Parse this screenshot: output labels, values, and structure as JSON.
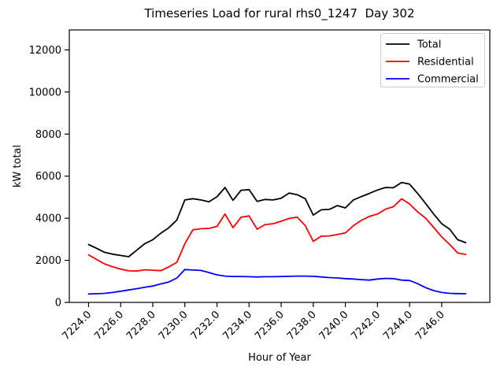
{
  "figure": {
    "title": "Timeseries Load for rural rhs0_1247  Day 302",
    "xlabel": "Hour of Year",
    "ylabel": "kW total"
  },
  "chart_data": {
    "type": "line",
    "title": "Timeseries Load for rural rhs0_1247  Day 302",
    "xlabel": "Hour of Year",
    "ylabel": "kW total",
    "grid": false,
    "xlim": [
      7222.8,
      7249.0
    ],
    "ylim": [
      0,
      12950
    ],
    "xticks": [
      7224.0,
      7226.0,
      7228.0,
      7230.0,
      7232.0,
      7234.0,
      7236.0,
      7238.0,
      7240.0,
      7242.0,
      7244.0,
      7246.0
    ],
    "xtick_labels": [
      "7224.0",
      "7226.0",
      "7228.0",
      "7230.0",
      "7232.0",
      "7234.0",
      "7236.0",
      "7238.0",
      "7240.0",
      "7242.0",
      "7244.0",
      "7246.0"
    ],
    "yticks": [
      0,
      2000,
      4000,
      6000,
      8000,
      10000,
      12000
    ],
    "ytick_labels": [
      "0",
      "2000",
      "4000",
      "6000",
      "8000",
      "10000",
      "12000"
    ],
    "x": [
      7224.0,
      7224.5,
      7225.0,
      7225.5,
      7226.0,
      7226.5,
      7227.0,
      7227.5,
      7228.0,
      7228.5,
      7229.0,
      7229.5,
      7230.0,
      7230.5,
      7231.0,
      7231.5,
      7232.0,
      7232.5,
      7233.0,
      7233.5,
      7234.0,
      7234.5,
      7235.0,
      7235.5,
      7236.0,
      7236.5,
      7237.0,
      7237.5,
      7238.0,
      7238.5,
      7239.0,
      7239.5,
      7240.0,
      7240.5,
      7241.0,
      7241.5,
      7242.0,
      7242.5,
      7243.0,
      7243.5,
      7244.0,
      7244.5,
      7245.0,
      7245.5,
      7246.0,
      7246.5,
      7247.0,
      7247.5
    ],
    "series": [
      {
        "name": "Total",
        "color": "#000000",
        "values": [
          2750,
          2570,
          2380,
          2290,
          2230,
          2170,
          2480,
          2790,
          2980,
          3290,
          3550,
          3920,
          4870,
          4930,
          4870,
          4780,
          5020,
          5460,
          4850,
          5330,
          5360,
          4800,
          4890,
          4870,
          4950,
          5200,
          5120,
          4930,
          4150,
          4400,
          4420,
          4600,
          4490,
          4870,
          5030,
          5180,
          5340,
          5460,
          5450,
          5700,
          5620,
          5180,
          4700,
          4200,
          3740,
          3480,
          2980,
          2840
        ]
      },
      {
        "name": "Residential",
        "color": "#ff0000",
        "values": [
          2260,
          2040,
          1830,
          1690,
          1580,
          1500,
          1490,
          1550,
          1530,
          1510,
          1690,
          1910,
          2790,
          3450,
          3500,
          3520,
          3610,
          4200,
          3550,
          4050,
          4110,
          3480,
          3700,
          3740,
          3860,
          3990,
          4050,
          3650,
          2900,
          3150,
          3160,
          3230,
          3300,
          3650,
          3900,
          4090,
          4200,
          4430,
          4550,
          4920,
          4680,
          4300,
          4000,
          3560,
          3110,
          2750,
          2350,
          2280
        ]
      },
      {
        "name": "Commercial",
        "color": "#0000ff",
        "values": [
          400,
          410,
          430,
          470,
          530,
          590,
          650,
          720,
          780,
          880,
          970,
          1160,
          1560,
          1540,
          1520,
          1420,
          1310,
          1250,
          1230,
          1230,
          1220,
          1210,
          1220,
          1220,
          1230,
          1240,
          1250,
          1250,
          1240,
          1210,
          1180,
          1160,
          1130,
          1110,
          1080,
          1060,
          1110,
          1140,
          1130,
          1060,
          1040,
          890,
          700,
          560,
          470,
          430,
          420,
          410
        ]
      }
    ],
    "legend": {
      "position": "upper right",
      "entries": [
        "Total",
        "Residential",
        "Commercial"
      ],
      "border_color": "#cccccc",
      "background": "#ffffff"
    },
    "colors": {
      "spine": "#000000",
      "background": "#ffffff"
    }
  }
}
